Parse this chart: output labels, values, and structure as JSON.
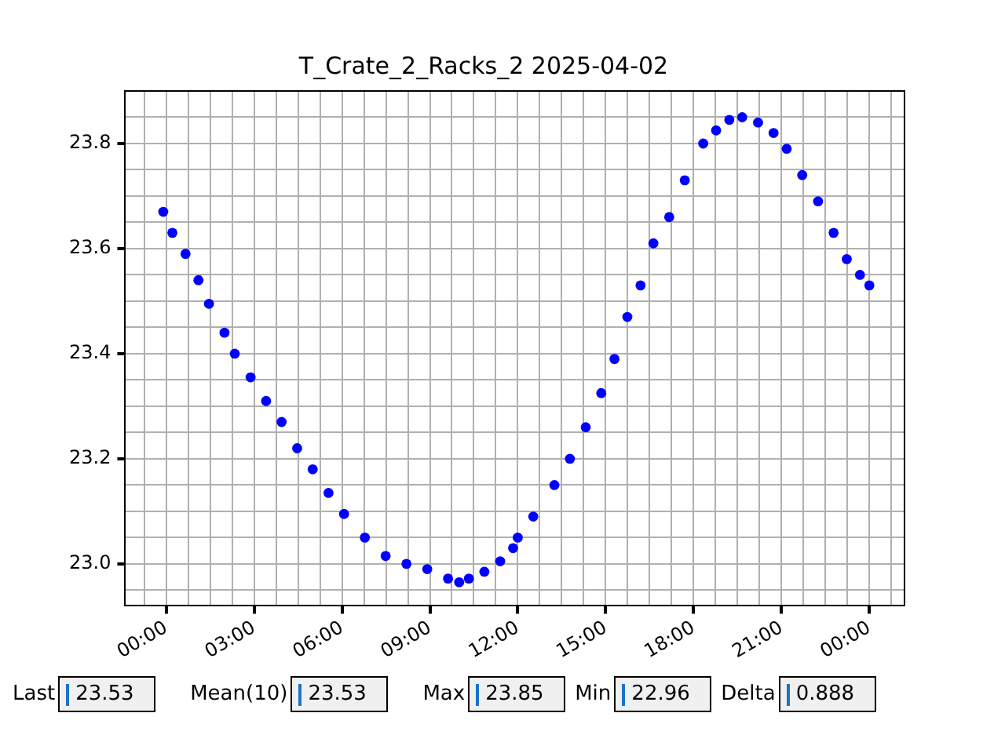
{
  "chart_data": {
    "type": "scatter",
    "title": "T_Crate_2_Racks_2 2025-04-02",
    "marker": "circle",
    "grid": true,
    "legend": false,
    "x": [
      -0.1,
      0.21,
      0.66,
      1.1,
      1.46,
      1.99,
      2.34,
      2.88,
      3.41,
      3.94,
      4.47,
      5.0,
      5.54,
      6.07,
      6.78,
      7.49,
      8.2,
      8.91,
      9.62,
      10.0,
      10.33,
      10.86,
      11.4,
      11.84,
      12.0,
      12.53,
      13.25,
      13.78,
      14.32,
      14.85,
      15.3,
      15.74,
      16.19,
      16.63,
      17.17,
      17.7,
      18.33,
      18.77,
      19.22,
      19.66,
      20.2,
      20.73,
      21.18,
      21.71,
      22.25,
      22.78,
      23.23,
      23.68,
      24.0
    ],
    "series": [
      {
        "color": "#0000ff",
        "values": [
          23.67,
          23.63,
          23.59,
          23.54,
          23.495,
          23.44,
          23.4,
          23.355,
          23.31,
          23.27,
          23.22,
          23.18,
          23.135,
          23.095,
          23.05,
          23.015,
          23.0,
          22.99,
          22.972,
          22.965,
          22.972,
          22.985,
          23.005,
          23.03,
          23.05,
          23.09,
          23.15,
          23.2,
          23.26,
          23.325,
          23.39,
          23.47,
          23.53,
          23.61,
          23.66,
          23.73,
          23.8,
          23.825,
          23.845,
          23.85,
          23.84,
          23.82,
          23.79,
          23.74,
          23.69,
          23.63,
          23.58,
          23.55,
          23.53
        ]
      }
    ],
    "xlim": [
      -1.4,
      25.2
    ],
    "xticks": [
      {
        "value": -0.75,
        "label": null
      },
      {
        "value": 0,
        "label": "00:00"
      },
      {
        "value": 0.75,
        "label": null
      },
      {
        "value": 1.5,
        "label": null
      },
      {
        "value": 2.25,
        "label": null
      },
      {
        "value": 3,
        "label": "03:00"
      },
      {
        "value": 3.75,
        "label": null
      },
      {
        "value": 4.5,
        "label": null
      },
      {
        "value": 5.25,
        "label": null
      },
      {
        "value": 6,
        "label": "06:00"
      },
      {
        "value": 6.75,
        "label": null
      },
      {
        "value": 7.5,
        "label": null
      },
      {
        "value": 8.25,
        "label": null
      },
      {
        "value": 9,
        "label": "09:00"
      },
      {
        "value": 9.75,
        "label": null
      },
      {
        "value": 10.5,
        "label": null
      },
      {
        "value": 11.25,
        "label": null
      },
      {
        "value": 12,
        "label": "12:00"
      },
      {
        "value": 12.75,
        "label": null
      },
      {
        "value": 13.5,
        "label": null
      },
      {
        "value": 14.25,
        "label": null
      },
      {
        "value": 15,
        "label": "15:00"
      },
      {
        "value": 15.75,
        "label": null
      },
      {
        "value": 16.5,
        "label": null
      },
      {
        "value": 17.25,
        "label": null
      },
      {
        "value": 18,
        "label": "18:00"
      },
      {
        "value": 18.75,
        "label": null
      },
      {
        "value": 19.5,
        "label": null
      },
      {
        "value": 20.25,
        "label": null
      },
      {
        "value": 21,
        "label": "21:00"
      },
      {
        "value": 21.75,
        "label": null
      },
      {
        "value": 22.5,
        "label": null
      },
      {
        "value": 23.25,
        "label": null
      },
      {
        "value": 24,
        "label": "00:00"
      },
      {
        "value": 24.75,
        "label": null
      }
    ],
    "ylim": [
      22.92,
      23.9
    ],
    "yticks": [
      {
        "value": 22.95,
        "label": null
      },
      {
        "value": 23,
        "label": "23.0"
      },
      {
        "value": 23.05,
        "label": null
      },
      {
        "value": 23.1,
        "label": null
      },
      {
        "value": 23.15,
        "label": null
      },
      {
        "value": 23.2,
        "label": "23.2"
      },
      {
        "value": 23.25,
        "label": null
      },
      {
        "value": 23.3,
        "label": null
      },
      {
        "value": 23.35,
        "label": null
      },
      {
        "value": 23.4,
        "label": "23.4"
      },
      {
        "value": 23.45,
        "label": null
      },
      {
        "value": 23.5,
        "label": null
      },
      {
        "value": 23.55,
        "label": null
      },
      {
        "value": 23.6,
        "label": "23.6"
      },
      {
        "value": 23.65,
        "label": null
      },
      {
        "value": 23.7,
        "label": null
      },
      {
        "value": 23.75,
        "label": null
      },
      {
        "value": 23.8,
        "label": "23.8"
      },
      {
        "value": 23.85,
        "label": null
      }
    ],
    "annotations": [
      "Last",
      "23.53",
      "Mean(10)",
      "23.53",
      "Max",
      "23.85",
      "Min",
      "22.96",
      "Delta",
      "0.888"
    ]
  }
}
